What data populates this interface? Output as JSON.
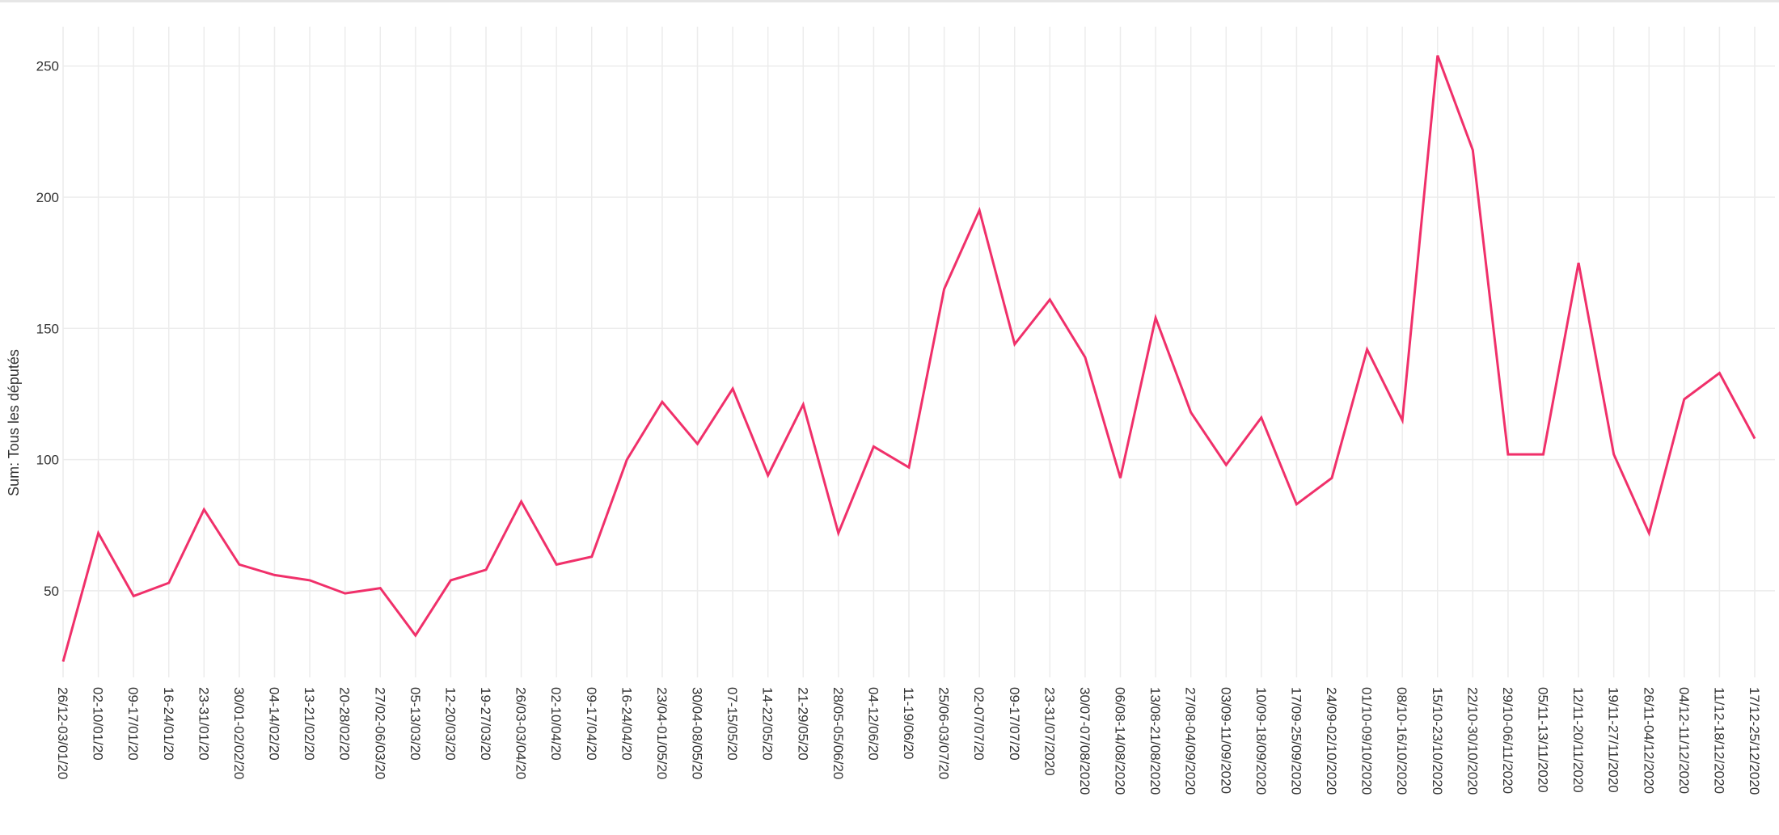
{
  "chart_data": {
    "type": "line",
    "ylabel": "Sum: Tous les députés",
    "xlabel": "",
    "ylim": [
      17,
      265
    ],
    "yticks": [
      50,
      100,
      150,
      200,
      250
    ],
    "grid": true,
    "line_color": "#f0306a",
    "grid_color": "#ececec",
    "categories": [
      "26/12-03/01/20",
      "02-10/01/20",
      "09-17/01/20",
      "16-24/01/20",
      "23-31/01/20",
      "30/01-02/02/20",
      "04-14/02/20",
      "13-21/02/20",
      "20-28/02/20",
      "27/02-06/03/20",
      "05-13/03/20",
      "12-20/03/20",
      "19-27/03/20",
      "26/03-03/04/20",
      "02-10/04/20",
      "09-17/04/20",
      "16-24/04/20",
      "23/04-01/05/20",
      "30/04-08/05/20",
      "07-15/05/20",
      "14-22/05/20",
      "21-29/05/20",
      "28/05-05/06/20",
      "04-12/06/20",
      "11-19/06/20",
      "25/06-03/07/20",
      "02-07/07/20",
      "09-17/07/20",
      "23-31/07/2020",
      "30/07-07/08/2020",
      "06/08-14/08/2020",
      "13/08-21/08/2020",
      "27/08-04/09/2020",
      "03/09-11/09/2020",
      "10/09-18/09/2020",
      "17/09-25/09/2020",
      "24/09-02/10/2020",
      "01/10-09/10/2020",
      "08/10-16/10/2020",
      "15/10-23/10/2020",
      "22/10-30/10/2020",
      "29/10-06/11/2020",
      "05/11-13/11/2020",
      "12/11-20/11/2020",
      "19/11-27/11/2020",
      "26/11-04/12/2020",
      "04/12-11/12/2020",
      "11/12-18/12/2020",
      "17/12-25/12/2020"
    ],
    "series": [
      {
        "values": [
          23,
          72,
          48,
          53,
          81,
          60,
          56,
          54,
          49,
          51,
          33,
          54,
          58,
          84,
          60,
          63,
          100,
          122,
          106,
          127,
          94,
          121,
          72,
          105,
          97,
          165,
          195,
          144,
          161,
          139,
          93,
          154,
          118,
          98,
          116,
          83,
          93,
          142,
          115,
          254,
          218,
          102,
          102,
          175,
          102,
          72,
          123,
          133,
          108
        ]
      }
    ]
  }
}
